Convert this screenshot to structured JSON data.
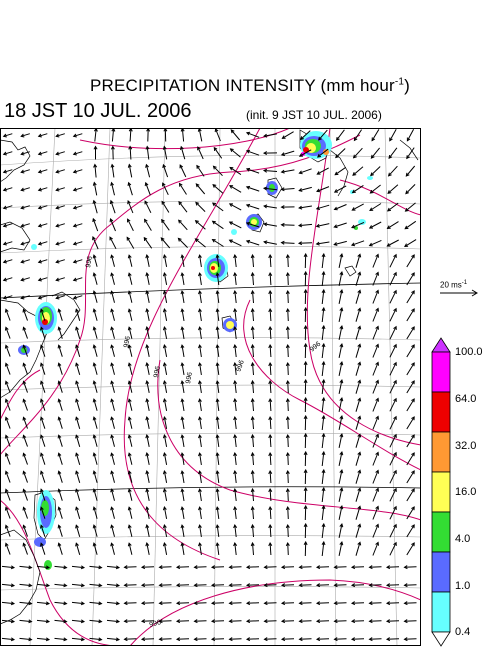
{
  "title": {
    "main": "PRECIPITATION INTENSITY (mm hour",
    "exponent": "-1",
    "close": ")"
  },
  "valid_time": "18 JST 10 JUL. 2006",
  "init_time": "(init. 9 JST 10 JUL. 2006)",
  "wind_scale": {
    "value": "20 ms",
    "exponent": "-1"
  },
  "isobar_labels": [
    "996",
    "996",
    "996",
    "996",
    "996",
    "996",
    "996"
  ],
  "colorbar": {
    "labels": [
      "100.0",
      "64.0",
      "32.0",
      "16.0",
      "4.0",
      "1.0",
      "0.4"
    ],
    "colors": [
      "#ff00ff",
      "#ee0000",
      "#ff9933",
      "#ffff55",
      "#33dd33",
      "#5a6bff",
      "#66ffff"
    ],
    "overflow_color": "#cc33ff"
  },
  "colors": {
    "isobar": "#cc0066",
    "coast": "#000000",
    "grid": "#aaaaaa",
    "arrow": "#000000"
  }
}
